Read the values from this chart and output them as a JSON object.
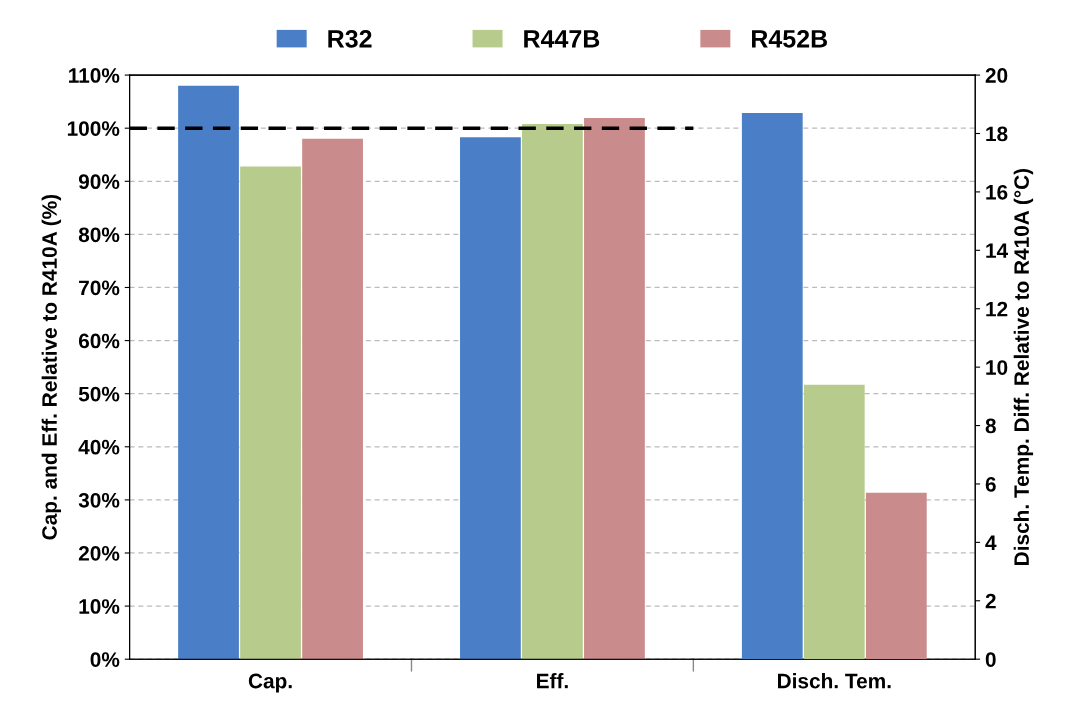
{
  "chart_data": {
    "type": "bar",
    "categories": [
      "Cap.",
      "Eff.",
      "Disch. Tem."
    ],
    "ylabel": "Cap. and Eff. Relative to R410A (%)",
    "y2label": "Disch. Temp. Diff. Relative to R410A (°C)",
    "series": [
      {
        "name": "R32",
        "color": "#4a7fc8",
        "values": [
          108,
          98.3,
          null
        ]
      },
      {
        "name": "R447B",
        "color": "#b7cc8c",
        "values": [
          92.8,
          100.8,
          null
        ]
      },
      {
        "name": "R452B",
        "color": "#c98b8b",
        "values": [
          98,
          101.9,
          null
        ]
      },
      {
        "color": "#4a7fc8",
        "axis": "y2",
        "values": [
          null,
          null,
          18.7
        ]
      },
      {
        "color": "#b7cc8c",
        "axis": "y2",
        "values": [
          null,
          null,
          9.4
        ]
      },
      {
        "color": "#c98b8b",
        "axis": "y2",
        "values": [
          null,
          null,
          5.7
        ]
      }
    ],
    "ylim": [
      0,
      110
    ],
    "yticks": [
      {
        "value": 0,
        "label": "0%"
      },
      {
        "value": 10,
        "label": "10%"
      },
      {
        "value": 20,
        "label": "20%"
      },
      {
        "value": 30,
        "label": "30%"
      },
      {
        "value": 40,
        "label": "40%"
      },
      {
        "value": 50,
        "label": "50%"
      },
      {
        "value": 60,
        "label": "60%"
      },
      {
        "value": 70,
        "label": "70%"
      },
      {
        "value": 80,
        "label": "80%"
      },
      {
        "value": 90,
        "label": "90%"
      },
      {
        "value": 100,
        "label": "100%"
      },
      {
        "value": 110,
        "label": "110%"
      }
    ],
    "y2lim": [
      0,
      20
    ],
    "y2ticks": [
      0,
      2,
      4,
      6,
      8,
      10,
      12,
      14,
      16,
      18,
      20
    ],
    "ref_lines": [
      {
        "axis": "y",
        "value": 100,
        "color": "#000000",
        "line_style": "dashed"
      }
    ],
    "grid": "y",
    "legend": "top"
  }
}
